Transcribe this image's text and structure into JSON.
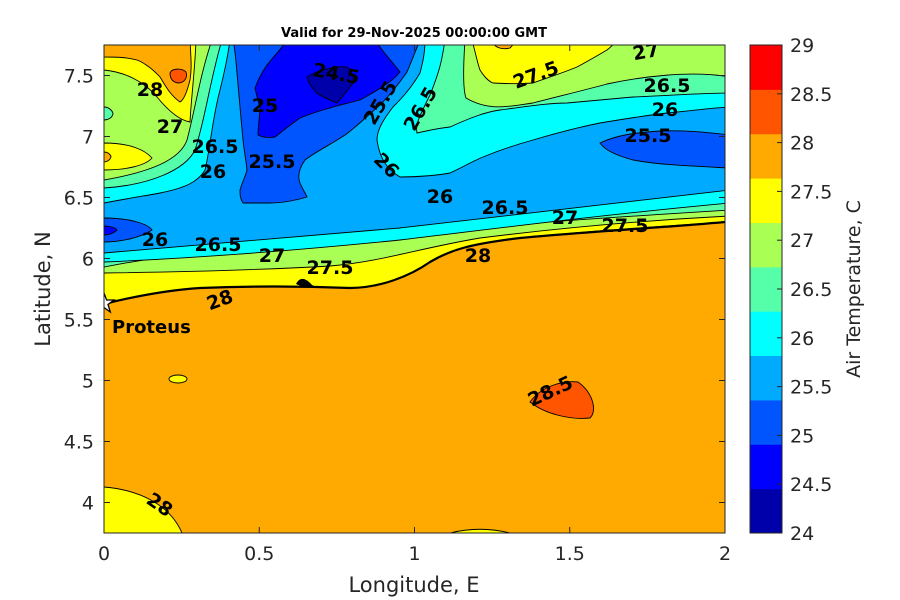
{
  "chart_data": {
    "type": "contour",
    "title": "Valid for 29-Nov-2025 00:00:00 GMT",
    "xlabel": "Longitude, E",
    "ylabel": "Latitude, N",
    "xlim": [
      0,
      2
    ],
    "ylim": [
      3.75,
      7.75
    ],
    "xticks": [
      0,
      0.5,
      1,
      1.5,
      2
    ],
    "xtick_labels": [
      "0",
      "0.5",
      "1",
      "1.5",
      "2"
    ],
    "yticks": [
      4,
      4.5,
      5,
      5.5,
      6,
      6.5,
      7,
      7.5
    ],
    "ytick_labels": [
      "4",
      "4.5",
      "5",
      "5.5",
      "6",
      "6.5",
      "7",
      "7.5"
    ],
    "colorbar": {
      "label": "Air Temperature, C",
      "range": [
        24,
        29
      ],
      "ticks": [
        24,
        24.5,
        25,
        25.5,
        26,
        26.5,
        27,
        27.5,
        28,
        28.5,
        29
      ],
      "tick_labels": [
        "24",
        "24.5",
        "25",
        "25.5",
        "26",
        "26.5",
        "27",
        "27.5",
        "28",
        "28.5",
        "29"
      ],
      "colors": [
        "#0000aa",
        "#0000ff",
        "#0055ff",
        "#00aaff",
        "#00ffff",
        "#55ffaa",
        "#aaff55",
        "#ffff00",
        "#ffaa00",
        "#ff5500",
        "#ff0000"
      ]
    },
    "contour_labels": [
      "24.5",
      "25.5",
      "26.5",
      "26",
      "27",
      "27.5",
      "26.5",
      "26",
      "25.5",
      "26",
      "26.5",
      "27",
      "27.5",
      "28",
      "26",
      "26.5",
      "27",
      "27.5",
      "28",
      "28",
      "28.5",
      "27",
      "28",
      "26",
      "26.5",
      "25.5",
      "25"
    ],
    "marker": {
      "name": "Proteus",
      "lon": 0,
      "lat": 5.63
    }
  }
}
